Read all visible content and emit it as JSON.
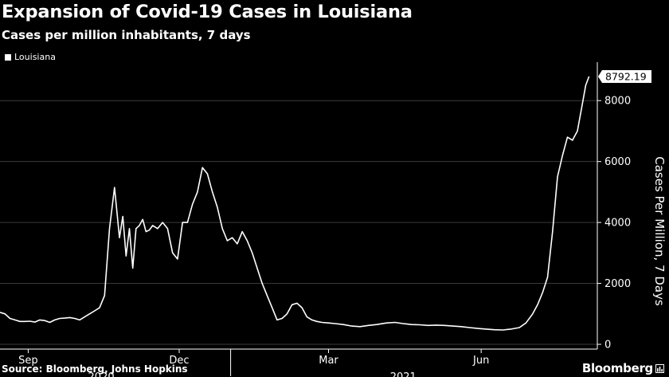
{
  "header": {
    "title": "Expansion of Covid-19 Cases in Louisiana",
    "subtitle": "Cases per million inhabitants, 7 days"
  },
  "footer": {
    "source": "Source: Bloomberg, Johns Hopkins",
    "brand": "Bloomberg"
  },
  "colors": {
    "background": "#000000",
    "line": "#ffffff",
    "grid": "#3a3a3a"
  },
  "chart_data": {
    "type": "line",
    "title": "Expansion of Covid-19 Cases in Louisiana",
    "subtitle": "Cases per million inhabitants, 7 days",
    "ylabel": "Cases Per Million, 7 Days",
    "xlabel": "",
    "ylim": [
      0,
      9000
    ],
    "yticks": [
      0,
      2000,
      4000,
      6000,
      8000
    ],
    "ytick_labels": [
      "0",
      "2000",
      "4000",
      "6000",
      "8000"
    ],
    "xticks": [
      "2020-09-01",
      "2020-12-01",
      "2021-03-01",
      "2021-06-01"
    ],
    "xtick_labels": [
      "Sep",
      "Dec",
      "Mar",
      "Jun"
    ],
    "year_labels": [
      {
        "label": "2020",
        "date": "2020-10-15"
      },
      {
        "label": "2021",
        "date": "2021-04-15"
      }
    ],
    "year_boundary": "2021-01-01",
    "xlim": [
      "2020-08-15",
      "2021-08-10"
    ],
    "grid": "horizontal",
    "legend": {
      "position": "top-left",
      "entries": [
        "Louisiana"
      ]
    },
    "last_value_label": "8792.19",
    "series": [
      {
        "name": "Louisiana",
        "x": [
          "2020-08-15",
          "2020-08-18",
          "2020-08-21",
          "2020-08-24",
          "2020-08-27",
          "2020-08-30",
          "2020-09-02",
          "2020-09-05",
          "2020-09-08",
          "2020-09-11",
          "2020-09-14",
          "2020-09-17",
          "2020-09-20",
          "2020-09-23",
          "2020-09-26",
          "2020-09-29",
          "2020-10-02",
          "2020-10-05",
          "2020-10-08",
          "2020-10-11",
          "2020-10-14",
          "2020-10-17",
          "2020-10-20",
          "2020-10-23",
          "2020-10-26",
          "2020-10-28",
          "2020-10-30",
          "2020-11-01",
          "2020-11-03",
          "2020-11-05",
          "2020-11-07",
          "2020-11-09",
          "2020-11-11",
          "2020-11-13",
          "2020-11-15",
          "2020-11-18",
          "2020-11-21",
          "2020-11-24",
          "2020-11-27",
          "2020-11-30",
          "2020-12-03",
          "2020-12-06",
          "2020-12-09",
          "2020-12-12",
          "2020-12-15",
          "2020-12-18",
          "2020-12-21",
          "2020-12-24",
          "2020-12-27",
          "2020-12-30",
          "2021-01-02",
          "2021-01-05",
          "2021-01-08",
          "2021-01-11",
          "2021-01-14",
          "2021-01-17",
          "2021-01-20",
          "2021-01-23",
          "2021-01-26",
          "2021-01-29",
          "2021-02-01",
          "2021-02-04",
          "2021-02-07",
          "2021-02-10",
          "2021-02-13",
          "2021-02-16",
          "2021-02-19",
          "2021-02-22",
          "2021-02-25",
          "2021-03-01",
          "2021-03-05",
          "2021-03-10",
          "2021-03-15",
          "2021-03-20",
          "2021-03-25",
          "2021-03-30",
          "2021-04-05",
          "2021-04-10",
          "2021-04-15",
          "2021-04-20",
          "2021-04-25",
          "2021-04-30",
          "2021-05-05",
          "2021-05-10",
          "2021-05-15",
          "2021-05-20",
          "2021-05-25",
          "2021-05-30",
          "2021-06-04",
          "2021-06-09",
          "2021-06-14",
          "2021-06-19",
          "2021-06-24",
          "2021-06-28",
          "2021-07-02",
          "2021-07-05",
          "2021-07-08",
          "2021-07-11",
          "2021-07-14",
          "2021-07-17",
          "2021-07-20",
          "2021-07-23",
          "2021-07-26",
          "2021-07-29",
          "2021-08-01",
          "2021-08-03",
          "2021-08-05"
        ],
        "y": [
          1050,
          1000,
          850,
          800,
          750,
          750,
          760,
          730,
          800,
          780,
          720,
          800,
          850,
          860,
          880,
          850,
          800,
          900,
          1000,
          1100,
          1200,
          1600,
          3800,
          5150,
          3500,
          4200,
          2900,
          3800,
          2500,
          3800,
          3900,
          4100,
          3700,
          3750,
          3900,
          3800,
          4000,
          3800,
          3000,
          2800,
          4000,
          4000,
          4600,
          5000,
          5800,
          5600,
          5000,
          4500,
          3800,
          3400,
          3500,
          3300,
          3700,
          3400,
          3000,
          2500,
          2000,
          1600,
          1200,
          800,
          850,
          1000,
          1300,
          1350,
          1200,
          900,
          800,
          750,
          720,
          700,
          680,
          650,
          600,
          580,
          620,
          650,
          700,
          720,
          680,
          650,
          640,
          620,
          630,
          620,
          600,
          580,
          550,
          520,
          500,
          480,
          470,
          500,
          550,
          700,
          1000,
          1300,
          1700,
          2200,
          3700,
          5500,
          6200,
          6800,
          6700,
          7000,
          7900,
          8500,
          8792.19
        ]
      }
    ]
  }
}
